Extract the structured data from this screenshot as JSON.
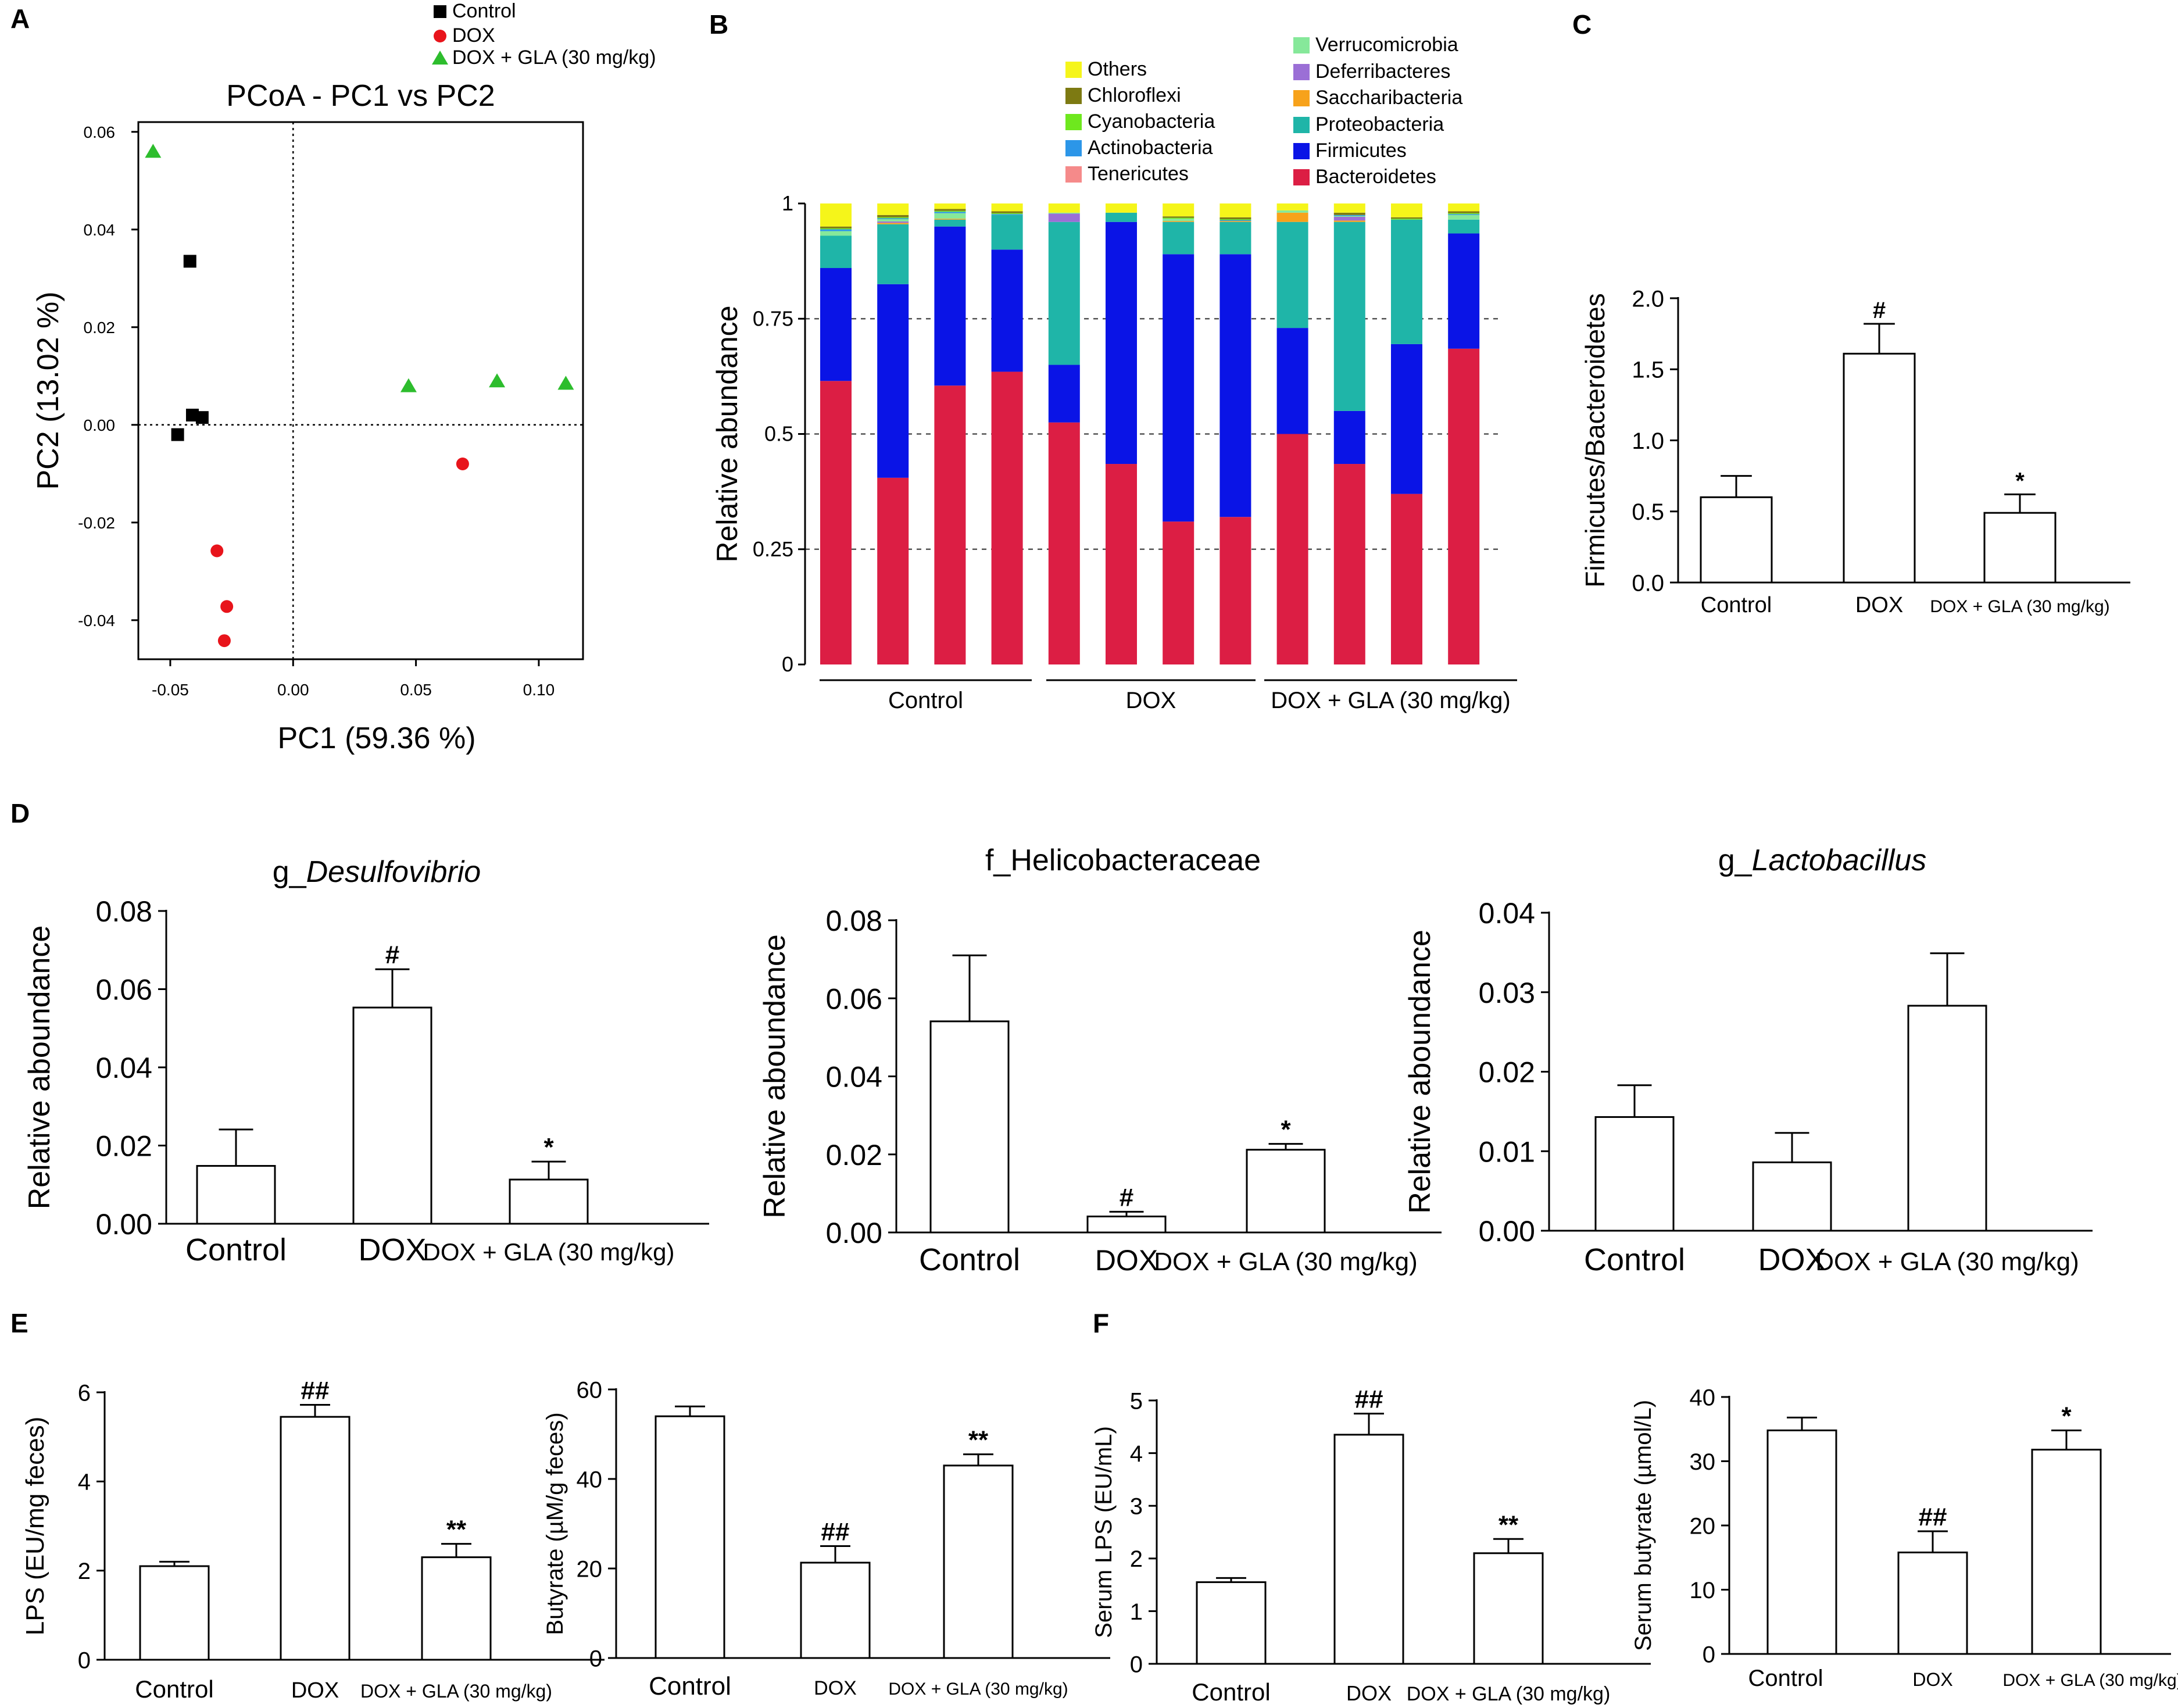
{
  "panel_letters": [
    "A",
    "B",
    "C",
    "D",
    "E",
    "F"
  ],
  "chart_data": [
    {
      "id": "A",
      "type": "scatter",
      "title": "PCoA - PC1 vs PC2",
      "xlabel": "PC1 (59.36 %)",
      "ylabel": "PC2 (13.02 %)",
      "xlim": [
        -0.063,
        0.118
      ],
      "ylim": [
        -0.048,
        0.062
      ],
      "xticks": [
        -0.05,
        0.0,
        0.05,
        0.1
      ],
      "xtick_labels": [
        "-0.05",
        "0.00",
        "0.05",
        "0.10"
      ],
      "yticks": [
        -0.04,
        -0.02,
        0.0,
        0.02,
        0.04,
        0.06
      ],
      "ytick_labels": [
        "-0.04",
        "-0.02",
        "0.00",
        "0.02",
        "0.04",
        "0.06"
      ],
      "legend": [
        "Control",
        "DOX",
        "DOX + GLA (30 mg/kg)"
      ],
      "series": [
        {
          "name": "Control",
          "marker": "square",
          "color": "#000000",
          "points": [
            [
              -0.042,
              0.0335
            ],
            [
              -0.041,
              0.002
            ],
            [
              -0.047,
              -0.002
            ],
            [
              -0.037,
              0.0015
            ]
          ]
        },
        {
          "name": "DOX",
          "marker": "circle",
          "color": "#e8141b",
          "points": [
            [
              -0.031,
              -0.0258
            ],
            [
              -0.027,
              -0.0372
            ],
            [
              -0.028,
              -0.0442
            ],
            [
              0.069,
              -0.008
            ]
          ]
        },
        {
          "name": "DOX + GLA (30 mg/kg)",
          "marker": "triangle",
          "color": "#2dbd2d",
          "points": [
            [
              -0.057,
              0.056
            ],
            [
              0.047,
              0.008
            ],
            [
              0.083,
              0.009
            ],
            [
              0.111,
              0.0085
            ]
          ]
        }
      ]
    },
    {
      "id": "B",
      "type": "bar",
      "stacked": true,
      "ylabel": "Relative abundance",
      "ylim": [
        0,
        1
      ],
      "yticks": [
        0,
        0.25,
        0.5,
        0.75,
        1
      ],
      "ytick_labels": [
        "0",
        "0.25",
        "0.5",
        "0.75",
        "1"
      ],
      "groups": [
        "Control",
        "DOX",
        "DOX + GLA (30 mg/kg)"
      ],
      "legend_left": [
        "Others",
        "Chloroflexi",
        "Cyanobacteria",
        "Actinobacteria",
        "Tenericutes"
      ],
      "legend_right": [
        "Verrucomicrobia",
        "Deferribacteres",
        "Saccharibacteria",
        "Proteobacteria",
        "Firmicutes",
        "Bacteroidetes"
      ],
      "colors": {
        "Bacteroidetes": "#dc1e44",
        "Firmicutes": "#0a14e6",
        "Proteobacteria": "#1fb5a8",
        "Saccharibacteria": "#f7a21b",
        "Deferribacteres": "#9b6fd6",
        "Verrucomicrobia": "#86e89a",
        "Tenericutes": "#f58a8a",
        "Actinobacteria": "#2c96e8",
        "Cyanobacteria": "#6ee81e",
        "Chloroflexi": "#7d7a12",
        "Others": "#f5f51a"
      },
      "stack_order": [
        "Bacteroidetes",
        "Firmicutes",
        "Proteobacteria",
        "Saccharibacteria",
        "Deferribacteres",
        "Verrucomicrobia",
        "Tenericutes",
        "Actinobacteria",
        "Cyanobacteria",
        "Chloroflexi",
        "Others"
      ],
      "series": [
        {
          "name": "Bacteroidetes",
          "values": [
            0.615,
            0.405,
            0.605,
            0.635,
            0.525,
            0.435,
            0.31,
            0.32,
            0.5,
            0.435,
            0.37,
            0.685
          ]
        },
        {
          "name": "Firmicutes",
          "values": [
            0.245,
            0.42,
            0.345,
            0.265,
            0.125,
            0.525,
            0.58,
            0.57,
            0.23,
            0.115,
            0.325,
            0.25
          ]
        },
        {
          "name": "Proteobacteria",
          "values": [
            0.07,
            0.13,
            0.015,
            0.075,
            0.31,
            0.02,
            0.07,
            0.07,
            0.23,
            0.41,
            0.27,
            0.03
          ]
        },
        {
          "name": "Saccharibacteria",
          "values": [
            0.0,
            0.003,
            0.002,
            0.0,
            0.0,
            0.0,
            0.002,
            0.002,
            0.02,
            0.003,
            0.0,
            0.0
          ]
        },
        {
          "name": "Deferribacteres",
          "values": [
            0.0,
            0.003,
            0.0,
            0.0,
            0.018,
            0.0,
            0.0,
            0.0,
            0.0,
            0.008,
            0.0,
            0.0
          ]
        },
        {
          "name": "Verrucomicrobia",
          "values": [
            0.01,
            0.005,
            0.012,
            0.0,
            0.002,
            0.0,
            0.005,
            0.0,
            0.005,
            0.002,
            0.0,
            0.01
          ]
        },
        {
          "name": "Tenericutes",
          "values": [
            0.0,
            0.0,
            0.0,
            0.0,
            0.0,
            0.0,
            0.0,
            0.0,
            0.0,
            0.0,
            0.0,
            0.0
          ]
        },
        {
          "name": "Actinobacteria",
          "values": [
            0.004,
            0.002,
            0.003,
            0.002,
            0.0,
            0.0,
            0.0,
            0.002,
            0.0,
            0.002,
            0.0,
            0.002
          ]
        },
        {
          "name": "Cyanobacteria",
          "values": [
            0.002,
            0.002,
            0.002,
            0.002,
            0.0,
            0.0,
            0.002,
            0.002,
            0.0,
            0.0,
            0.002,
            0.002
          ]
        },
        {
          "name": "Chloroflexi",
          "values": [
            0.004,
            0.005,
            0.004,
            0.004,
            0.0,
            0.0,
            0.003,
            0.004,
            0.0,
            0.005,
            0.003,
            0.004
          ]
        },
        {
          "name": "Others",
          "values": [
            0.05,
            0.025,
            0.012,
            0.017,
            0.02,
            0.02,
            0.028,
            0.03,
            0.015,
            0.02,
            0.03,
            0.017
          ]
        }
      ]
    },
    {
      "id": "C",
      "type": "bar",
      "ylabel": "Firmicutes/Bacteroidetes",
      "categories": [
        "Control",
        "DOX",
        "DOX + GLA (30 mg/kg)"
      ],
      "values": [
        0.6,
        1.61,
        0.49
      ],
      "errors": [
        0.15,
        0.21,
        0.13
      ],
      "annotations": [
        "",
        "#",
        "*"
      ],
      "ylim": [
        0,
        2.0
      ],
      "yticks": [
        0,
        0.5,
        1.0,
        1.5,
        2.0
      ],
      "ytick_labels": [
        "0.0",
        "0.5",
        "1.0",
        "1.5",
        "2.0"
      ]
    },
    {
      "id": "D1",
      "type": "bar",
      "title_prefix": "g_",
      "title_italic": "Desulfovibrio",
      "ylabel": "Relative aboundance",
      "categories": [
        "Control",
        "DOX",
        "DOX + GLA (30 mg/kg)"
      ],
      "values": [
        0.0148,
        0.0553,
        0.0113
      ],
      "errors": [
        0.0093,
        0.0098,
        0.0046
      ],
      "annotations": [
        "",
        "#",
        "*"
      ],
      "ylim": [
        0,
        0.08
      ],
      "yticks": [
        0,
        0.02,
        0.04,
        0.06,
        0.08
      ],
      "ytick_labels": [
        "0.00",
        "0.02",
        "0.04",
        "0.06",
        "0.08"
      ]
    },
    {
      "id": "D2",
      "type": "bar",
      "title_prefix": "f_Helicobacteraceae",
      "title_italic": "",
      "ylabel": "Relative aboundance",
      "categories": [
        "Control",
        "DOX",
        "DOX + GLA (30 mg/kg)"
      ],
      "values": [
        0.0541,
        0.0041,
        0.0212
      ],
      "errors": [
        0.0169,
        0.0012,
        0.0015
      ],
      "annotations": [
        "",
        "#",
        "*"
      ],
      "ylim": [
        0,
        0.08
      ],
      "yticks": [
        0,
        0.02,
        0.04,
        0.06,
        0.08
      ],
      "ytick_labels": [
        "0.00",
        "0.02",
        "0.04",
        "0.06",
        "0.08"
      ]
    },
    {
      "id": "D3",
      "type": "bar",
      "title_prefix": "g_",
      "title_italic": "Lactobacillus",
      "ylabel": "Relative aboundance",
      "categories": [
        "Control",
        "DOX",
        "DOX + GLA (30 mg/kg)"
      ],
      "values": [
        0.0143,
        0.0086,
        0.0283
      ],
      "errors": [
        0.004,
        0.0037,
        0.0066
      ],
      "annotations": [
        "",
        "",
        ""
      ],
      "ylim": [
        0,
        0.04
      ],
      "yticks": [
        0,
        0.01,
        0.02,
        0.03,
        0.04
      ],
      "ytick_labels": [
        "0.00",
        "0.01",
        "0.02",
        "0.03",
        "0.04"
      ]
    },
    {
      "id": "E1",
      "type": "bar",
      "ylabel": "LPS (EU/mg feces)",
      "categories": [
        "Control",
        "DOX",
        "DOX + GLA (30 mg/kg)"
      ],
      "values": [
        2.1,
        5.45,
        2.3
      ],
      "errors": [
        0.1,
        0.27,
        0.3
      ],
      "annotations": [
        "",
        "##",
        "**"
      ],
      "ylim": [
        0,
        6
      ],
      "yticks": [
        0,
        2,
        4,
        6
      ],
      "ytick_labels": [
        "0",
        "2",
        "4",
        "6"
      ]
    },
    {
      "id": "E2",
      "type": "bar",
      "ylabel": "Butyrate (µM/g feces)",
      "categories": [
        "Control",
        "DOX",
        "DOX + GLA (30 mg/kg)"
      ],
      "values": [
        54.0,
        21.3,
        43.0
      ],
      "errors": [
        2.2,
        3.7,
        2.5
      ],
      "annotations": [
        "",
        "##",
        "**"
      ],
      "ylim": [
        0,
        60
      ],
      "yticks": [
        0,
        20,
        40,
        60
      ],
      "ytick_labels": [
        "0",
        "20",
        "40",
        "60"
      ]
    },
    {
      "id": "F1",
      "type": "bar",
      "ylabel": "Serum LPS (EU/mL)",
      "categories": [
        "Control",
        "DOX",
        "DOX + GLA (30 mg/kg)"
      ],
      "values": [
        1.55,
        4.35,
        2.1
      ],
      "errors": [
        0.08,
        0.4,
        0.27
      ],
      "annotations": [
        "",
        "##",
        "**"
      ],
      "ylim": [
        0,
        5
      ],
      "yticks": [
        0,
        1,
        2,
        3,
        4,
        5
      ],
      "ytick_labels": [
        "0",
        "1",
        "2",
        "3",
        "4",
        "5"
      ]
    },
    {
      "id": "F2",
      "type": "bar",
      "ylabel": "Serum butyrate (µmol/L)",
      "categories": [
        "Control",
        "DOX",
        "DOX + GLA (30 mg/kg)"
      ],
      "values": [
        34.8,
        15.8,
        31.8
      ],
      "errors": [
        2.0,
        3.3,
        3.0
      ],
      "annotations": [
        "",
        "##",
        "*"
      ],
      "ylim": [
        0,
        40
      ],
      "yticks": [
        0,
        10,
        20,
        30,
        40
      ],
      "ytick_labels": [
        "0",
        "10",
        "20",
        "30",
        "40"
      ]
    }
  ]
}
